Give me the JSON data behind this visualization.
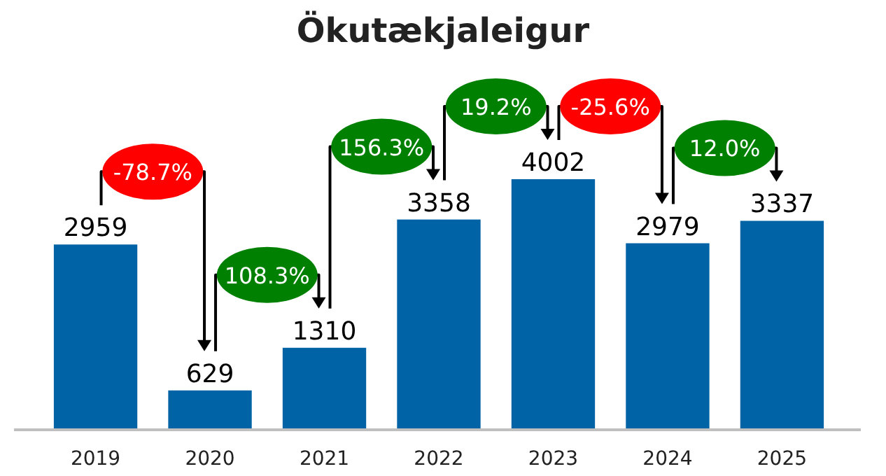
{
  "chart_data": {
    "type": "bar",
    "title": "Ökutækjaleigur",
    "categories": [
      "2019",
      "2020",
      "2021",
      "2022",
      "2023",
      "2024",
      "2025"
    ],
    "values": [
      2959,
      629,
      1310,
      3358,
      4002,
      2979,
      3337
    ],
    "color": "#0063a6",
    "data_labels": true,
    "annotations": [
      "-78.7%",
      "108.3%",
      "156.3%",
      "19.2%",
      "-25.6%",
      "12.0%"
    ]
  }
}
